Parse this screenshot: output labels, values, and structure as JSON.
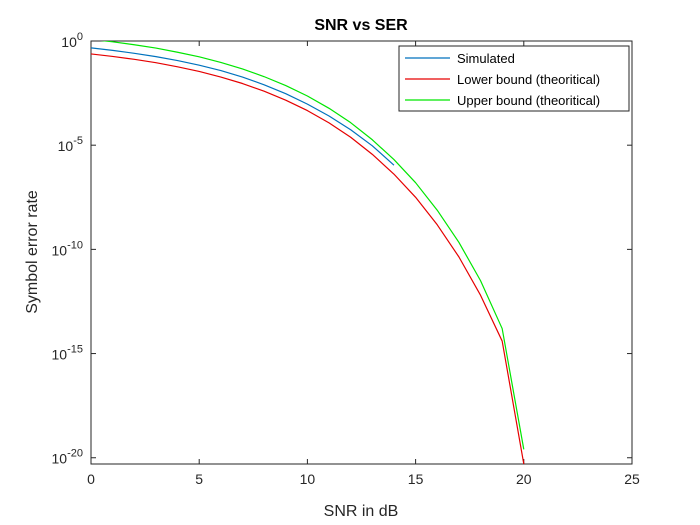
{
  "chart_data": {
    "type": "line",
    "title": "SNR vs SER",
    "xlabel": "SNR in dB",
    "ylabel": "Symbol error rate",
    "xlim": [
      0,
      25
    ],
    "ylim_log10": [
      -20.3,
      0
    ],
    "yscale": "log",
    "xticks": [
      {
        "value": 0,
        "label": "0"
      },
      {
        "value": 5,
        "label": "5"
      },
      {
        "value": 10,
        "label": "10"
      },
      {
        "value": 15,
        "label": "15"
      },
      {
        "value": 20,
        "label": "20"
      },
      {
        "value": 25,
        "label": "25"
      }
    ],
    "yticks": [
      {
        "exp": 0,
        "base": "10",
        "power": "0"
      },
      {
        "exp": -5,
        "base": "10",
        "power": "-5"
      },
      {
        "exp": -10,
        "base": "10",
        "power": "-10"
      },
      {
        "exp": -15,
        "base": "10",
        "power": "-15"
      },
      {
        "exp": -20,
        "base": "10",
        "power": "-20"
      }
    ],
    "legend_position": "top-right",
    "series": [
      {
        "name": "Simulated",
        "color": "#0072BD",
        "x": [
          0,
          1,
          2,
          3,
          4,
          5,
          6,
          7,
          8,
          9,
          10,
          11,
          12,
          13,
          14
        ],
        "log10_y": [
          -0.33,
          -0.45,
          -0.59,
          -0.75,
          -0.94,
          -1.16,
          -1.42,
          -1.73,
          -2.1,
          -2.53,
          -3.03,
          -3.6,
          -4.26,
          -5.03,
          -5.96
        ]
      },
      {
        "name": "Lower bound (theoritical)",
        "color": "#E60000",
        "x": [
          0,
          1,
          2,
          3,
          4,
          5,
          6,
          7,
          8,
          9,
          10,
          11,
          12,
          13,
          14,
          15,
          16,
          17,
          18,
          19,
          20
        ],
        "log10_y": [
          -0.62,
          -0.74,
          -0.88,
          -1.04,
          -1.24,
          -1.46,
          -1.73,
          -2.04,
          -2.41,
          -2.84,
          -3.34,
          -3.93,
          -4.62,
          -5.44,
          -6.39,
          -7.5,
          -8.82,
          -10.36,
          -12.2,
          -14.4,
          -20.3
        ]
      },
      {
        "name": "Upper bound (theoritical)",
        "color": "#00E600",
        "x": [
          0,
          1,
          2,
          3,
          4,
          5,
          6,
          7,
          8,
          9,
          10,
          11,
          12,
          13,
          14,
          15,
          16,
          17,
          18,
          19,
          20
        ],
        "log10_y": [
          0.08,
          -0.04,
          -0.18,
          -0.34,
          -0.54,
          -0.76,
          -1.03,
          -1.34,
          -1.71,
          -2.14,
          -2.64,
          -3.23,
          -3.92,
          -4.74,
          -5.69,
          -6.8,
          -8.12,
          -9.66,
          -11.5,
          -13.8,
          -19.6
        ]
      }
    ]
  },
  "colors": {
    "axis": "#262626",
    "background": "#ffffff"
  }
}
